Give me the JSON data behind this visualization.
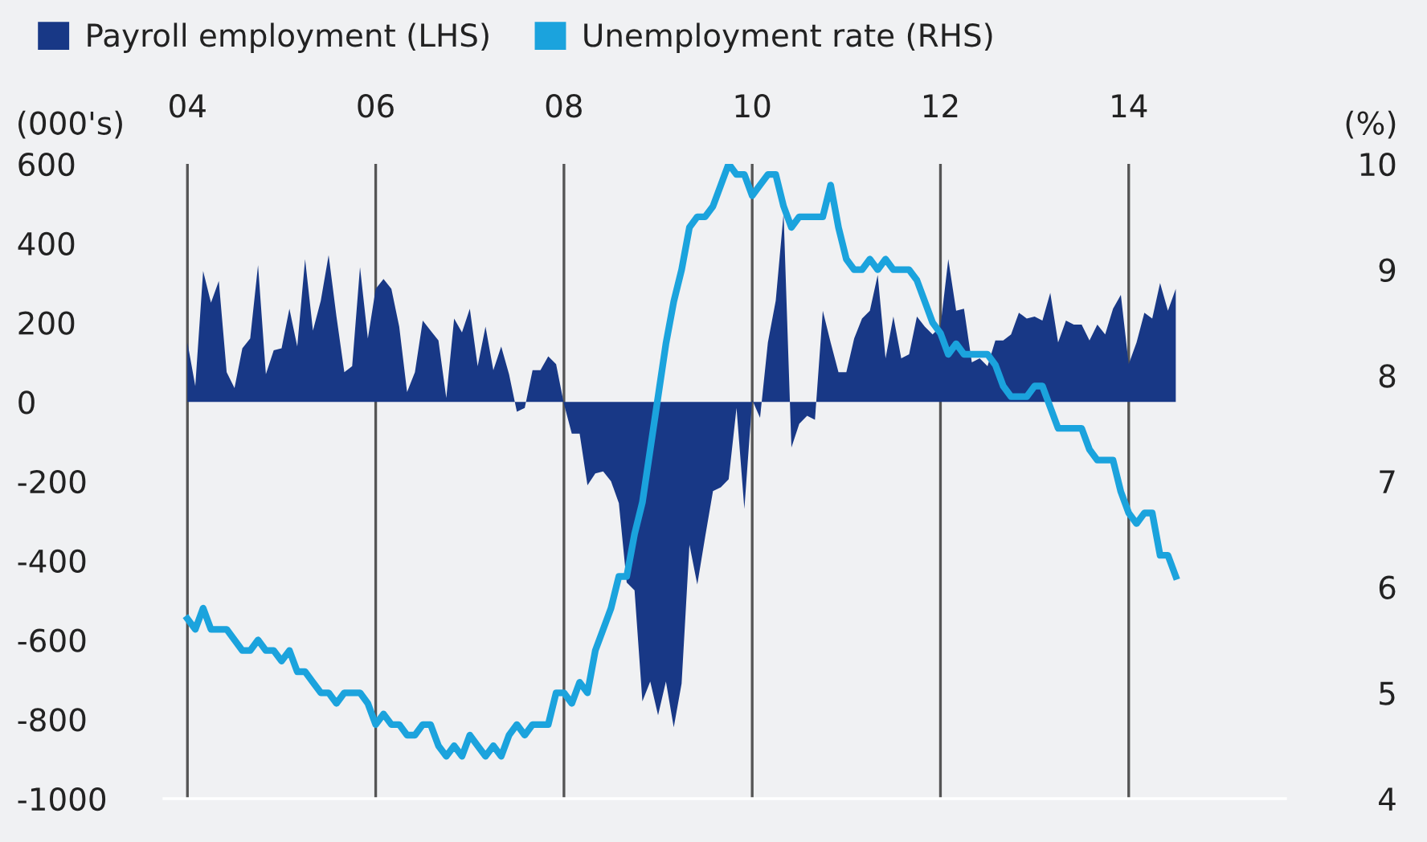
{
  "chart_data": {
    "type": "area",
    "xlabel": null,
    "ylabel": "(000's)",
    "y2label": "(%)",
    "x": [
      "2004-01",
      "2004-02",
      "2004-03",
      "2004-04",
      "2004-05",
      "2004-06",
      "2004-07",
      "2004-08",
      "2004-09",
      "2004-10",
      "2004-11",
      "2004-12",
      "2005-01",
      "2005-02",
      "2005-03",
      "2005-04",
      "2005-05",
      "2005-06",
      "2005-07",
      "2005-08",
      "2005-09",
      "2005-10",
      "2005-11",
      "2005-12",
      "2006-01",
      "2006-02",
      "2006-03",
      "2006-04",
      "2006-05",
      "2006-06",
      "2006-07",
      "2006-08",
      "2006-09",
      "2006-10",
      "2006-11",
      "2006-12",
      "2007-01",
      "2007-02",
      "2007-03",
      "2007-04",
      "2007-05",
      "2007-06",
      "2007-07",
      "2007-08",
      "2007-09",
      "2007-10",
      "2007-11",
      "2007-12",
      "2008-01",
      "2008-02",
      "2008-03",
      "2008-04",
      "2008-05",
      "2008-06",
      "2008-07",
      "2008-08",
      "2008-09",
      "2008-10",
      "2008-11",
      "2008-12",
      "2009-01",
      "2009-02",
      "2009-03",
      "2009-04",
      "2009-05",
      "2009-06",
      "2009-07",
      "2009-08",
      "2009-09",
      "2009-10",
      "2009-11",
      "2009-12",
      "2010-01",
      "2010-02",
      "2010-03",
      "2010-04",
      "2010-05",
      "2010-06",
      "2010-07",
      "2010-08",
      "2010-09",
      "2010-10",
      "2010-11",
      "2010-12",
      "2011-01",
      "2011-02",
      "2011-03",
      "2011-04",
      "2011-05",
      "2011-06",
      "2011-07",
      "2011-08",
      "2011-09",
      "2011-10",
      "2011-11",
      "2011-12",
      "2012-01",
      "2012-02",
      "2012-03",
      "2012-04",
      "2012-05",
      "2012-06",
      "2012-07",
      "2012-08",
      "2012-09",
      "2012-10",
      "2012-11",
      "2012-12",
      "2013-01",
      "2013-02",
      "2013-03",
      "2013-04",
      "2013-05",
      "2013-06",
      "2013-07",
      "2013-08",
      "2013-09",
      "2013-10",
      "2013-11",
      "2013-12",
      "2014-01",
      "2014-02",
      "2014-03",
      "2014-04",
      "2014-05",
      "2014-06",
      "2014-07"
    ],
    "series": [
      {
        "name": "Payroll employment (LHS)",
        "color": "#183886",
        "values": [
          150,
          40,
          330,
          250,
          305,
          75,
          35,
          135,
          160,
          345,
          70,
          130,
          135,
          235,
          140,
          360,
          180,
          255,
          370,
          215,
          75,
          90,
          340,
          160,
          285,
          310,
          285,
          190,
          25,
          75,
          205,
          180,
          155,
          10,
          210,
          175,
          235,
          90,
          190,
          80,
          140,
          70,
          -25,
          -15,
          80,
          80,
          115,
          95,
          -5,
          -80,
          -80,
          -210,
          -180,
          -175,
          -200,
          -255,
          -455,
          -475,
          -755,
          -705,
          -790,
          -705,
          -820,
          -710,
          -360,
          -460,
          -340,
          -225,
          -215,
          -195,
          -15,
          -270,
          5,
          -40,
          150,
          255,
          475,
          -115,
          -55,
          -35,
          -45,
          230,
          150,
          75,
          75,
          160,
          210,
          230,
          320,
          110,
          215,
          110,
          120,
          215,
          190,
          170,
          190,
          360,
          230,
          235,
          100,
          110,
          90,
          155,
          155,
          170,
          225,
          210,
          215,
          205,
          275,
          150,
          205,
          195,
          195,
          155,
          195,
          170,
          235,
          270,
          95,
          150,
          225,
          210,
          300,
          230,
          285
        ]
      },
      {
        "name": "Unemployment rate (RHS)",
        "type": "line",
        "axis": "y2",
        "color": "#1ba3dd",
        "values": [
          5.7,
          5.6,
          5.8,
          5.6,
          5.6,
          5.6,
          5.5,
          5.4,
          5.4,
          5.5,
          5.4,
          5.4,
          5.3,
          5.4,
          5.2,
          5.2,
          5.1,
          5.0,
          5.0,
          4.9,
          5.0,
          5.0,
          5.0,
          4.9,
          4.7,
          4.8,
          4.7,
          4.7,
          4.6,
          4.6,
          4.7,
          4.7,
          4.5,
          4.4,
          4.5,
          4.4,
          4.6,
          4.5,
          4.4,
          4.5,
          4.4,
          4.6,
          4.7,
          4.6,
          4.7,
          4.7,
          4.7,
          5.0,
          5.0,
          4.9,
          5.1,
          5.0,
          5.4,
          5.6,
          5.8,
          6.1,
          6.1,
          6.5,
          6.8,
          7.3,
          7.8,
          8.3,
          8.7,
          9.0,
          9.4,
          9.5,
          9.5,
          9.6,
          9.8,
          10.0,
          9.9,
          9.9,
          9.7,
          9.8,
          9.9,
          9.9,
          9.6,
          9.4,
          9.5,
          9.5,
          9.5,
          9.5,
          9.8,
          9.4,
          9.1,
          9.0,
          9.0,
          9.1,
          9.0,
          9.1,
          9.0,
          9.0,
          9.0,
          8.9,
          8.7,
          8.5,
          8.4,
          8.2,
          8.3,
          8.2,
          8.2,
          8.2,
          8.2,
          8.1,
          7.9,
          7.8,
          7.8,
          7.8,
          7.9,
          7.9,
          7.7,
          7.5,
          7.5,
          7.5,
          7.5,
          7.3,
          7.2,
          7.2,
          7.2,
          6.9,
          6.7,
          6.6,
          6.7,
          6.7,
          6.3,
          6.3,
          6.1
        ]
      }
    ],
    "xlim": [
      "2003-10",
      "2015-09"
    ],
    "xticks": [
      {
        "value": "2004-01",
        "label": "04"
      },
      {
        "value": "2006-01",
        "label": "06"
      },
      {
        "value": "2008-01",
        "label": "08"
      },
      {
        "value": "2010-01",
        "label": "10"
      },
      {
        "value": "2012-01",
        "label": "12"
      },
      {
        "value": "2014-01",
        "label": "14"
      }
    ],
    "ylim": [
      -1000,
      600
    ],
    "yticks": [
      -1000,
      -800,
      -600,
      -400,
      -200,
      0,
      200,
      400,
      600
    ],
    "y2lim": [
      4,
      10
    ],
    "y2ticks": [
      4,
      5,
      6,
      7,
      8,
      9,
      10
    ],
    "grid": "x",
    "legend": "top left",
    "line_style": "solid",
    "marker": "none"
  }
}
